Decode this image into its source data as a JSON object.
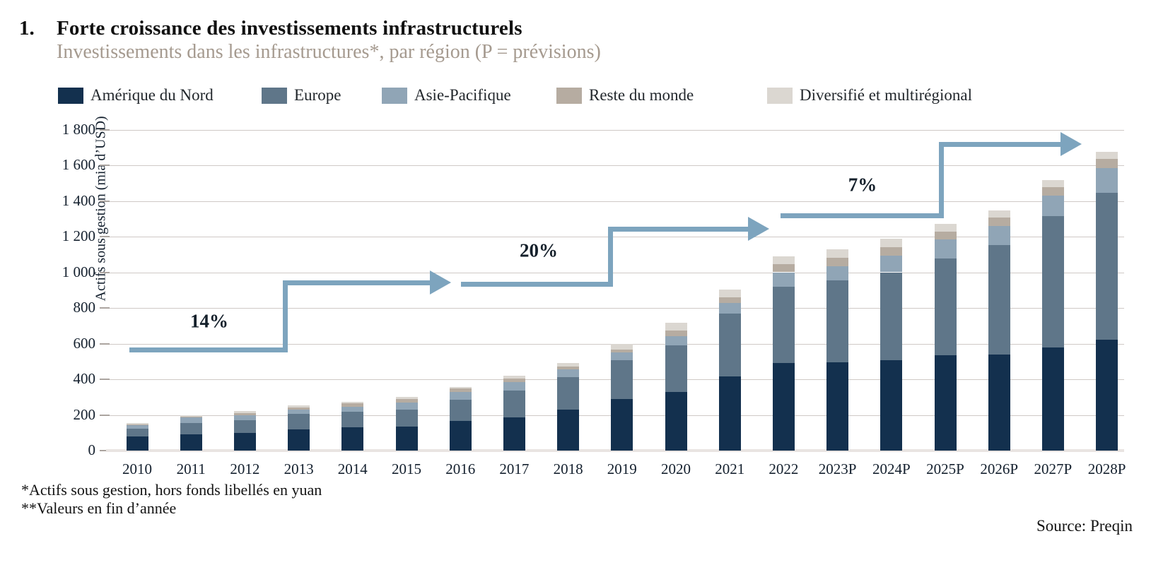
{
  "header": {
    "number": "1.",
    "title": "Forte croissance des investissements infrastructurels",
    "subtitle": "Investissements dans les infrastructures*, par région (P = prévisions)"
  },
  "chart_data": {
    "type": "bar",
    "stacked": true,
    "title": "Forte croissance des investissements infrastructurels",
    "subtitle": "Investissements dans les infrastructures*, par région (P = prévisions)",
    "xlabel": "",
    "ylabel": "Actifs sous gestion (mia d’USD)",
    "ylim": [
      0,
      1800
    ],
    "ytick_step": 200,
    "ytick_labels": [
      "0",
      "200",
      "400",
      "600",
      "800",
      "1 000",
      "1 200",
      "1 400",
      "1 600",
      "1 800"
    ],
    "grid": true,
    "legend_position": "top",
    "categories": [
      "2010",
      "2011",
      "2012",
      "2013",
      "2014",
      "2015",
      "2016",
      "2017",
      "2018",
      "2019",
      "2020",
      "2021",
      "2022",
      "2023P",
      "2024P",
      "2025P",
      "2026P",
      "2027P",
      "2028P"
    ],
    "series": [
      {
        "name": "Amérique du Nord",
        "color": "#13304e",
        "values": [
          78,
          90,
          100,
          118,
          130,
          135,
          165,
          185,
          228,
          290,
          330,
          415,
          490,
          495,
          505,
          533,
          540,
          580,
          620
        ]
      },
      {
        "name": "Europe",
        "color": "#5f7689",
        "values": [
          45,
          65,
          70,
          86,
          88,
          95,
          120,
          150,
          182,
          215,
          260,
          353,
          430,
          460,
          495,
          543,
          613,
          733,
          826
        ]
      },
      {
        "name": "Asie-Pacifique",
        "color": "#90a5b6",
        "values": [
          18,
          30,
          28,
          25,
          28,
          40,
          45,
          50,
          45,
          45,
          50,
          60,
          80,
          80,
          95,
          110,
          107,
          115,
          140
        ]
      },
      {
        "name": "Reste du monde",
        "color": "#b6aca1",
        "values": [
          5,
          7,
          10,
          14,
          20,
          20,
          18,
          18,
          15,
          17,
          32,
          30,
          45,
          45,
          45,
          40,
          47,
          50,
          50
        ]
      },
      {
        "name": "Diversifié et multirégional",
        "color": "#dbd7d1",
        "values": [
          8,
          8,
          12,
          10,
          8,
          12,
          7,
          17,
          20,
          30,
          45,
          45,
          45,
          47,
          50,
          44,
          40,
          40,
          40
        ]
      }
    ],
    "annotations": [
      {
        "label": "14%"
      },
      {
        "label": "20%"
      },
      {
        "label": "7%"
      }
    ],
    "arrow_color": "#7da4be"
  },
  "footnotes": [
    "*Actifs sous gestion, hors fonds libellés en yuan",
    "**Valeurs en fin d’année"
  ],
  "source": "Source: Preqin"
}
